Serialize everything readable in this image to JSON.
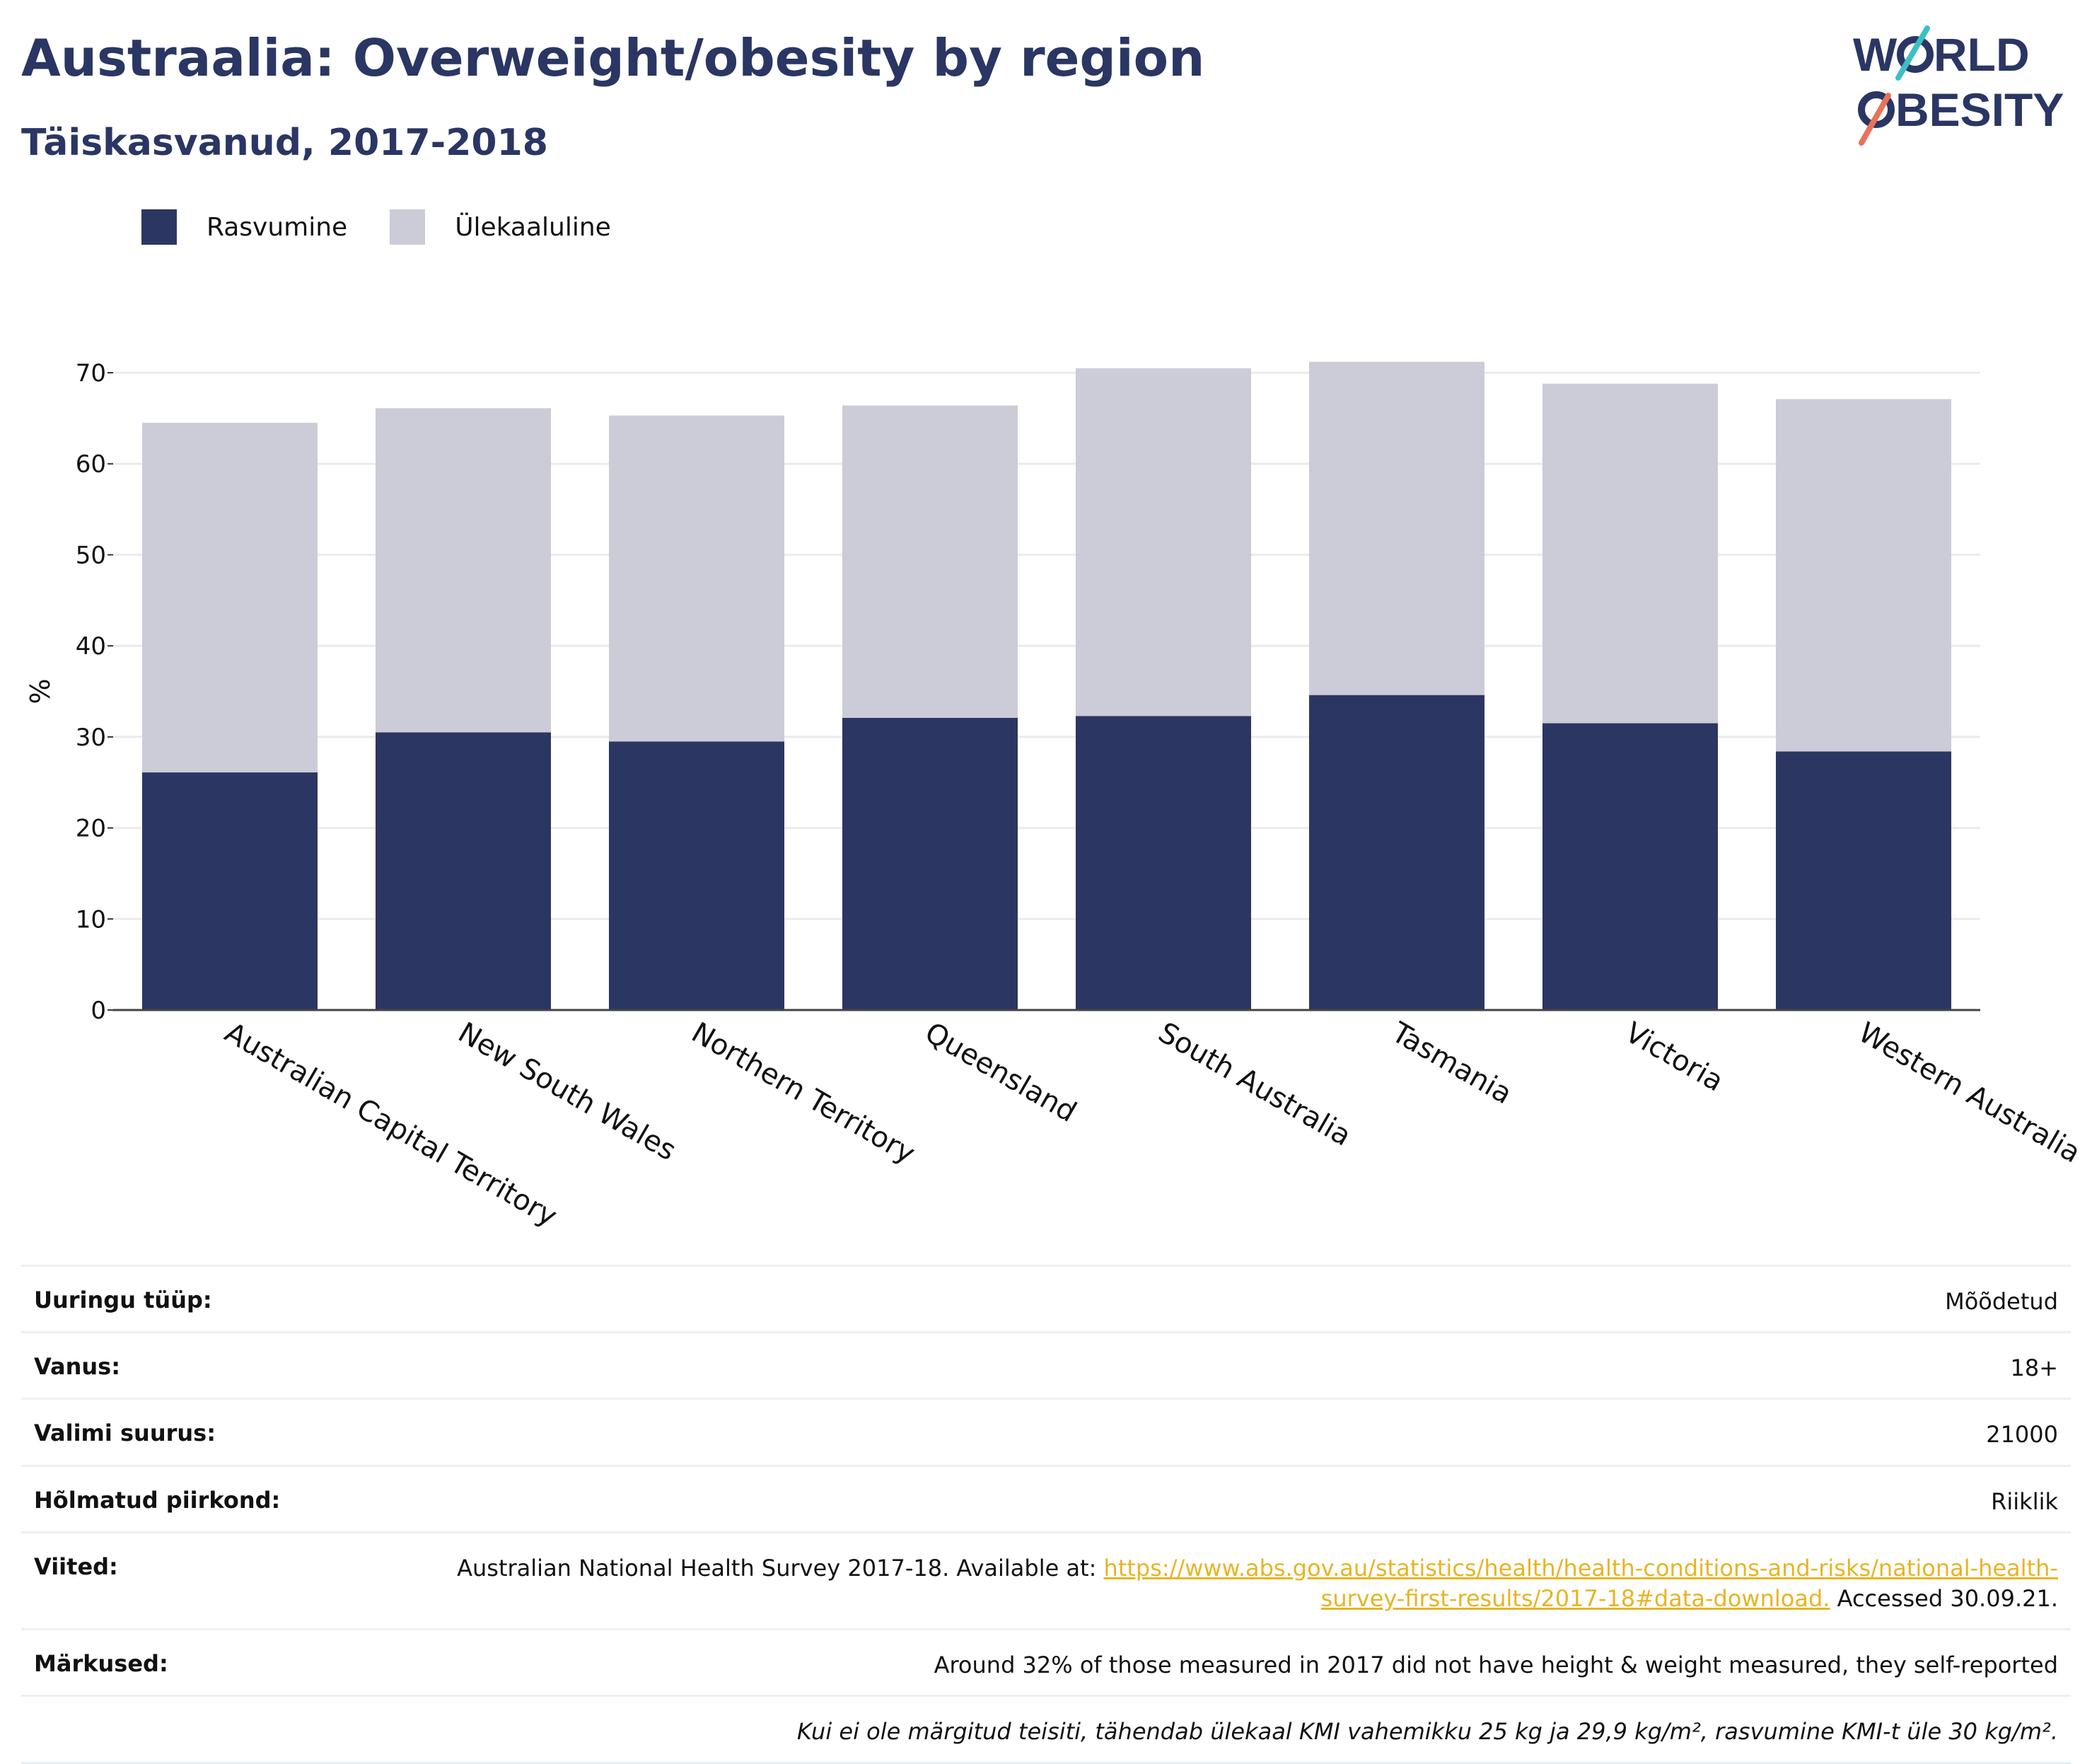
{
  "header": {
    "title": "Austraalia: Overweight/obesity by region",
    "subtitle": "Täiskasvanud, 2017-2018"
  },
  "logo": {
    "line1": "WORLD",
    "line2": "OBESITY"
  },
  "colors": {
    "obesity": "#2b3663",
    "overweight": "#cbccd7",
    "title": "#2a3663",
    "link": "#e8b424"
  },
  "chart_data": {
    "type": "bar",
    "stacked": true,
    "categories": [
      "Australian Capital Territory",
      "New South Wales",
      "Northern Territory",
      "Queensland",
      "South Australia",
      "Tasmania",
      "Victoria",
      "Western Australia"
    ],
    "series": [
      {
        "name": "Rasvumine",
        "values": [
          26.1,
          30.5,
          29.5,
          32.1,
          32.3,
          34.6,
          31.5,
          28.4
        ]
      },
      {
        "name": "Ülekaaluline",
        "values": [
          38.4,
          35.6,
          35.8,
          34.3,
          38.2,
          36.6,
          37.3,
          38.7
        ]
      }
    ],
    "ylabel": "%",
    "xlabel": "",
    "ylim": [
      0,
      70
    ],
    "yticks": [
      0,
      10,
      20,
      30,
      40,
      50,
      60,
      70
    ],
    "grid": true,
    "legend_position": "top-left"
  },
  "meta": [
    {
      "key": "Uuringu tüüp:",
      "value": "Mõõdetud"
    },
    {
      "key": "Vanus:",
      "value": "18+"
    },
    {
      "key": "Valimi suurus:",
      "value": "21000"
    },
    {
      "key": "Hõlmatud piirkond:",
      "value": "Riiklik"
    }
  ],
  "references": {
    "key": "Viited:",
    "text_before": "Australian National Health Survey 2017-18. Available at: ",
    "link": "https://www.abs.gov.au/statistics/health/health-conditions-and-risks/national-health-survey-first-results/2017-18#data-download.",
    "text_after": " Accessed 30.09.21."
  },
  "remarks": {
    "key": "Märkused:",
    "value": "Around 32% of those measured in 2017 did not have height & weight measured, they self-reported"
  },
  "footnote": "Kui ei ole märgitud teisiti, tähendab ülekaal KMI vahemikku 25 kg ja 29,9 kg/m², rasvumine KMI-t üle 30 kg/m²."
}
